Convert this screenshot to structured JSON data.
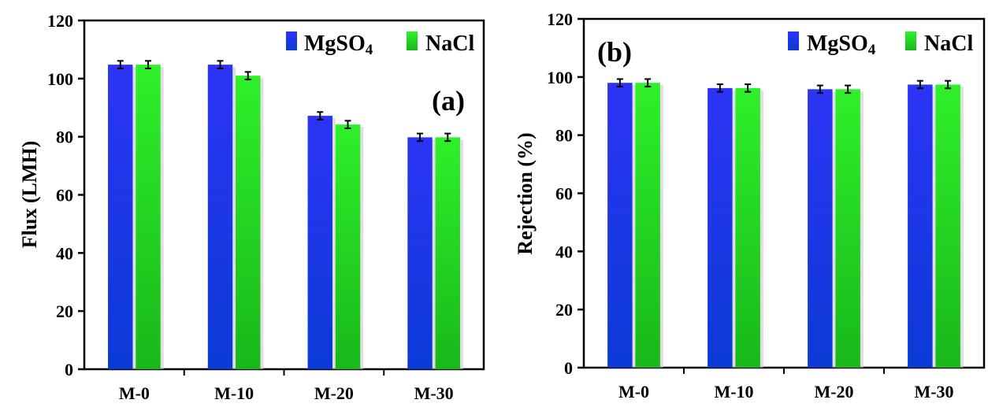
{
  "colors": {
    "mgso4": "#1a2ee8",
    "nacl": "#22d41a",
    "axis": "#000000"
  },
  "chart_data": [
    {
      "type": "bar",
      "panel_label": "(a)",
      "categories": [
        "M-0",
        "M-10",
        "M-20",
        "M-30"
      ],
      "series": [
        {
          "name": "MgSO",
          "subscript": "4",
          "values": [
            104.8,
            104.8,
            87.2,
            79.8
          ],
          "errors": [
            1.3,
            1.3,
            1.3,
            1.3
          ]
        },
        {
          "name": "NaCl",
          "subscript": "",
          "values": [
            104.8,
            101.0,
            84.2,
            79.8
          ],
          "errors": [
            1.3,
            1.3,
            1.3,
            1.3
          ]
        }
      ],
      "ylabel": "Flux (LMH)",
      "ylim": [
        0,
        120
      ],
      "yticks": [
        "0",
        "20",
        "40",
        "60",
        "80",
        "100",
        "120"
      ],
      "legend": "top-right",
      "grid": false
    },
    {
      "type": "bar",
      "panel_label": "(b)",
      "categories": [
        "M-0",
        "M-10",
        "M-20",
        "M-30"
      ],
      "series": [
        {
          "name": "MgSO",
          "subscript": "4",
          "values": [
            98.0,
            96.2,
            95.8,
            97.4
          ],
          "errors": [
            1.3,
            1.3,
            1.3,
            1.3
          ]
        },
        {
          "name": "NaCl",
          "subscript": "",
          "values": [
            98.0,
            96.2,
            95.8,
            97.4
          ],
          "errors": [
            1.3,
            1.3,
            1.3,
            1.3
          ]
        }
      ],
      "ylabel": "Rejection (%)",
      "ylim": [
        0,
        120
      ],
      "yticks": [
        "0",
        "20",
        "40",
        "60",
        "80",
        "100",
        "120"
      ],
      "legend": "top-right",
      "grid": false
    }
  ]
}
